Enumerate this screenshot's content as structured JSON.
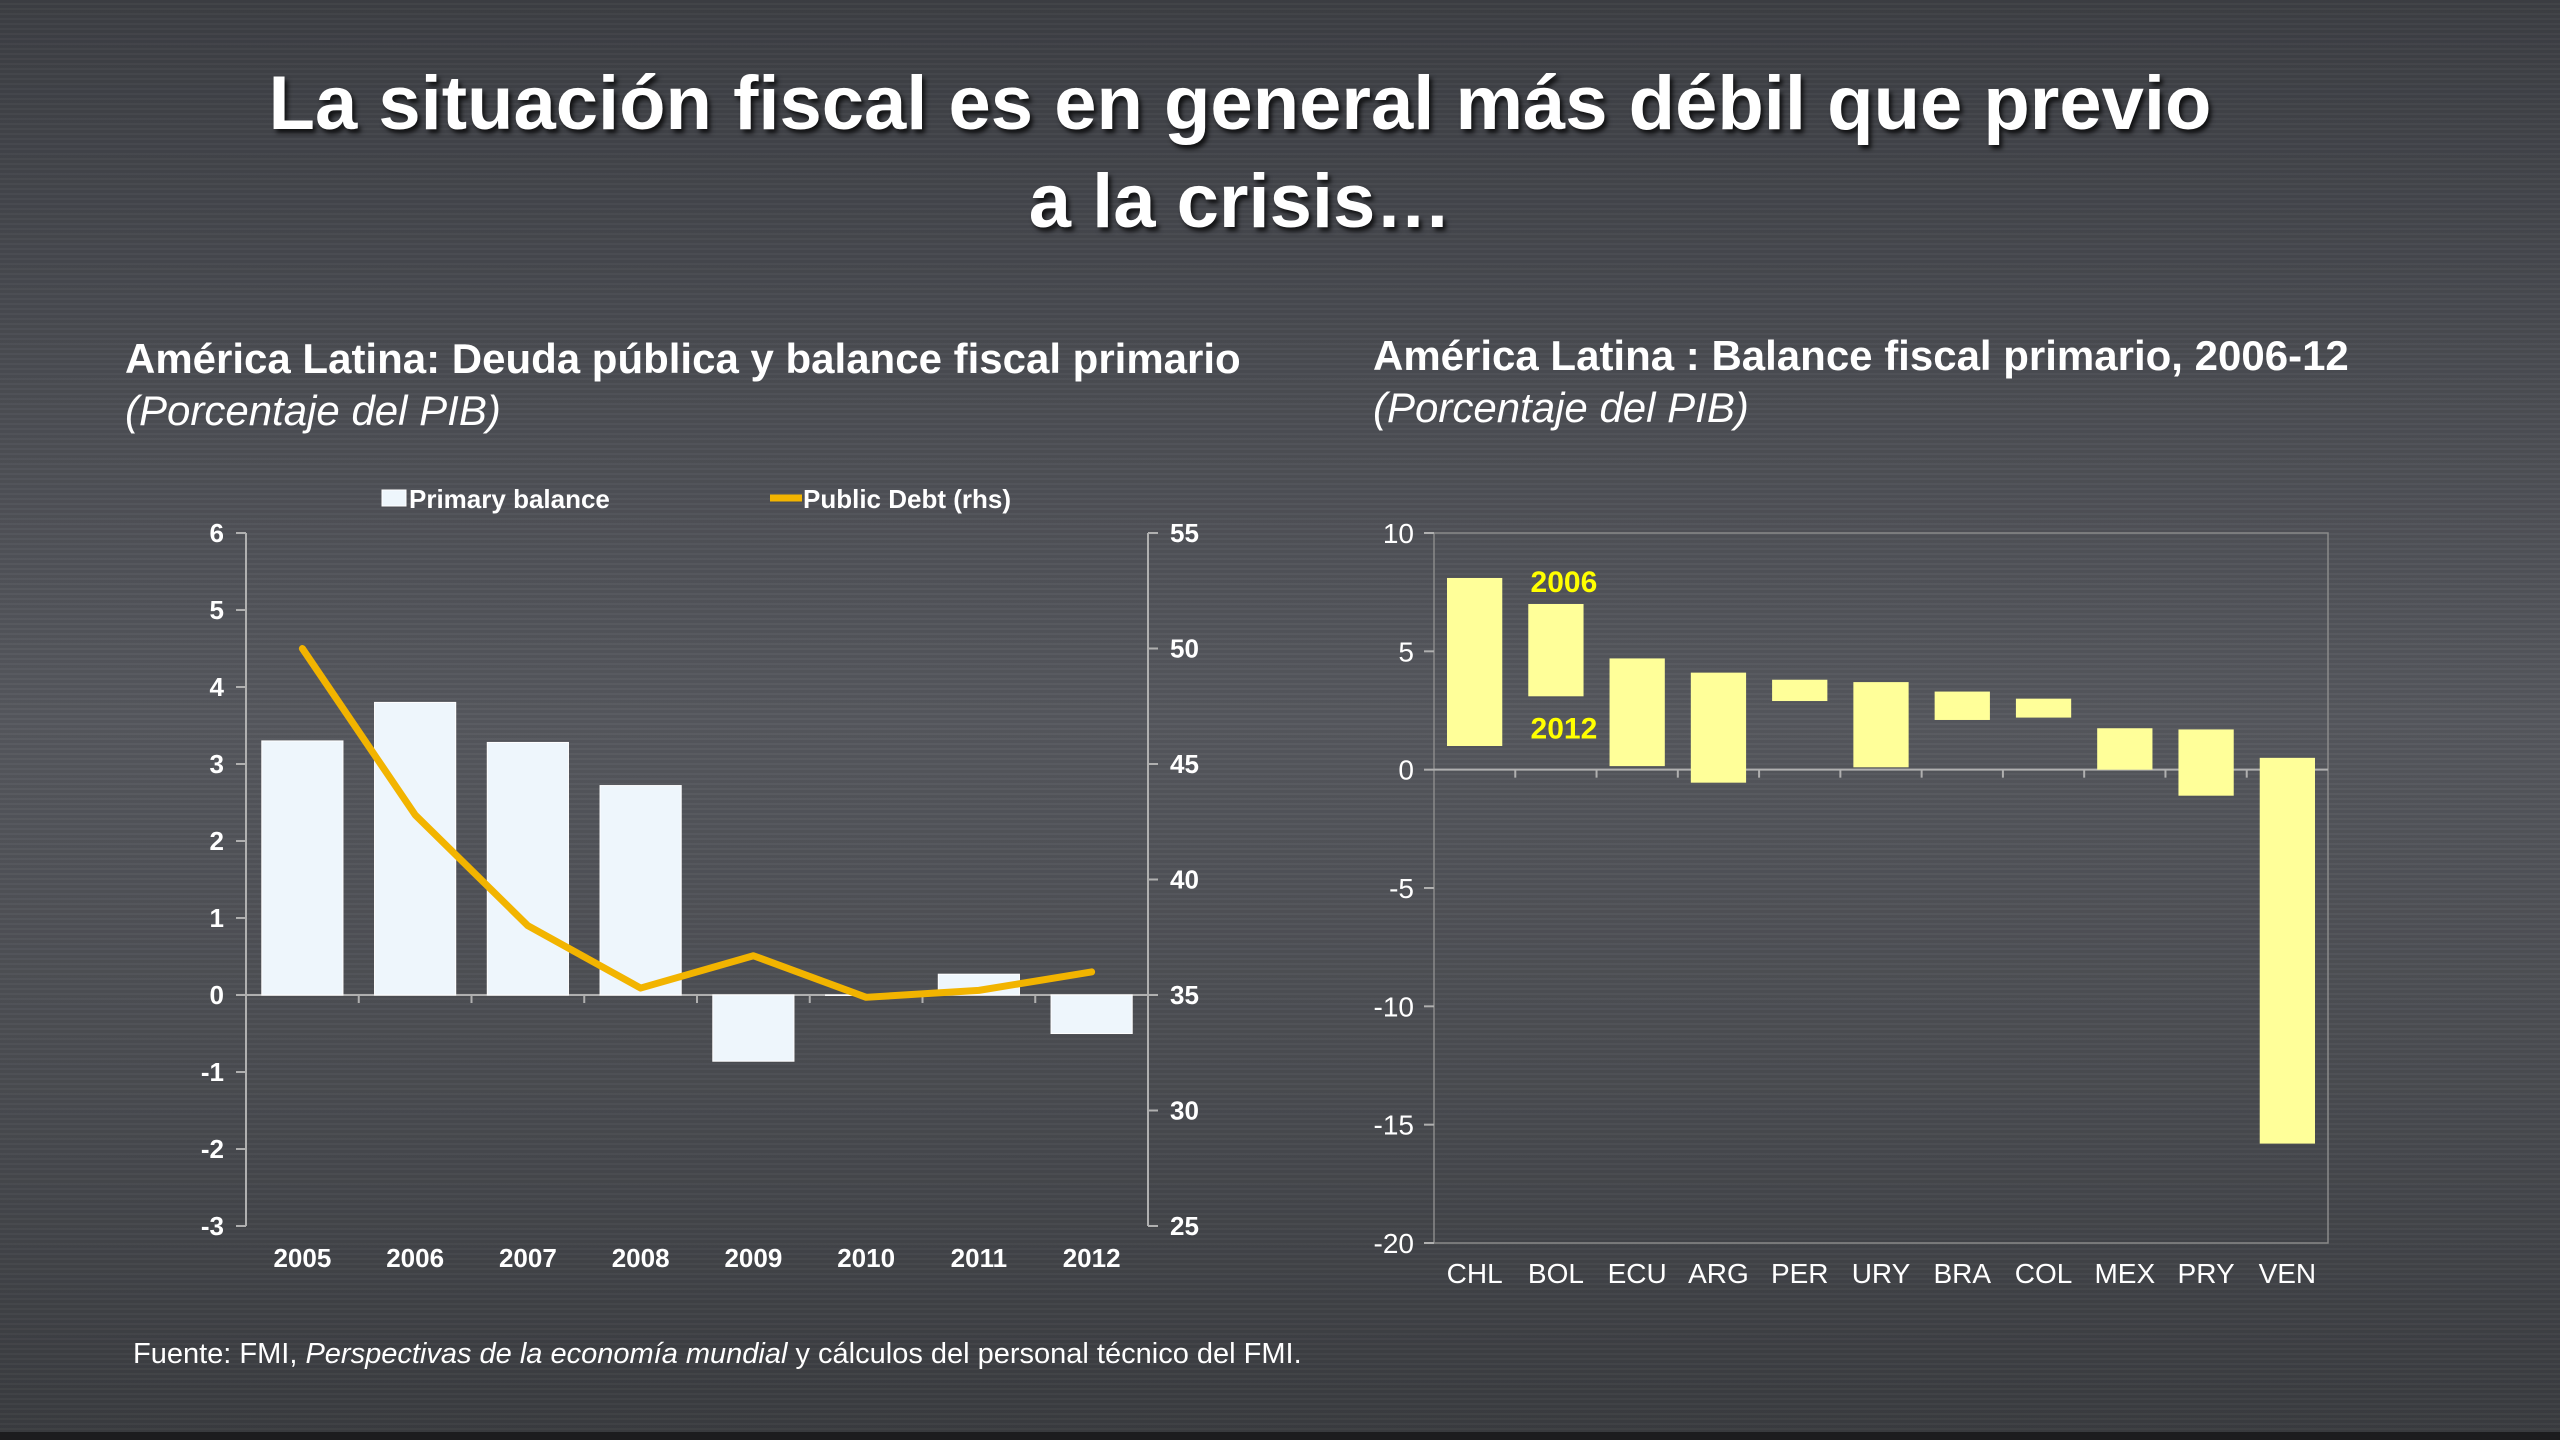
{
  "slide": {
    "title_line1": "La situación fiscal es en general más débil que previo",
    "title_line2": "a la  crisis…"
  },
  "source": {
    "prefix": "Fuente:  FMI, ",
    "italic": "Perspectivas de la economía mundial",
    "suffix": " y cálculos del personal técnico del FMI."
  },
  "colors": {
    "bar_left": "#eef6fc",
    "line_left": "#f2b400",
    "bar_right": "#ffff99",
    "label_right": "#ffff00",
    "axis": "#b0b0b0"
  },
  "chart_data": [
    {
      "type": "bar",
      "title": "América Latina: Deuda pública y balance fiscal primario",
      "subtitle": "(Porcentaje del PIB)",
      "categories": [
        "2005",
        "2006",
        "2007",
        "2008",
        "2009",
        "2010",
        "2011",
        "2012"
      ],
      "series": [
        {
          "name": "Primary balance",
          "type": "bar",
          "axis": "left",
          "values": [
            3.3,
            3.8,
            3.28,
            2.72,
            -0.86,
            0.0,
            0.27,
            -0.5
          ]
        },
        {
          "name": "Public Debt (rhs)",
          "type": "line",
          "axis": "right",
          "values": [
            50.0,
            42.8,
            38.0,
            35.3,
            36.7,
            34.9,
            35.2,
            36.0
          ]
        }
      ],
      "ylim": [
        -3,
        6
      ],
      "yticks": [
        "-3",
        "-2",
        "-1",
        "0",
        "1",
        "2",
        "3",
        "4",
        "5",
        "6"
      ],
      "y2lim": [
        25,
        55
      ],
      "y2ticks": [
        "25",
        "30",
        "35",
        "40",
        "45",
        "50",
        "55"
      ],
      "legend": "top",
      "grid": false
    },
    {
      "type": "bar",
      "title": "América Latina : Balance fiscal primario, 2006-12",
      "subtitle": "(Porcentaje del PIB)",
      "categories": [
        "CHL",
        "BOL",
        "ECU",
        "ARG",
        "PER",
        "URY",
        "BRA",
        "COL",
        "MEX",
        "PRY",
        "VEN"
      ],
      "series": [
        {
          "name": "2006",
          "values": [
            8.1,
            7.0,
            4.7,
            4.1,
            3.8,
            3.7,
            3.3,
            3.0,
            1.75,
            1.7,
            0.5
          ]
        },
        {
          "name": "2012",
          "values": [
            1.0,
            3.1,
            0.15,
            -0.55,
            2.9,
            0.1,
            2.1,
            2.2,
            0.0,
            -1.1,
            -15.8
          ]
        }
      ],
      "annotations": [
        "2006",
        "2012"
      ],
      "ylim": [
        -20,
        10
      ],
      "yticks": [
        "-20",
        "-15",
        "-10",
        "-5",
        "0",
        "5",
        "10"
      ],
      "legend": "none",
      "grid": false
    }
  ]
}
